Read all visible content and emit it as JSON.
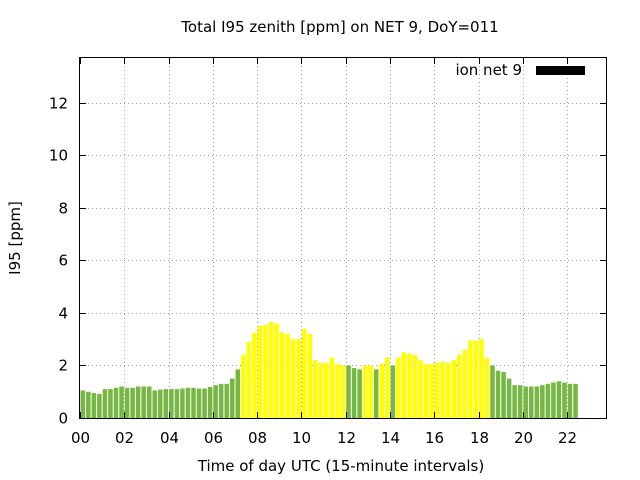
{
  "chart_data": {
    "type": "bar",
    "title": "Total I95 zenith [ppm] on NET 9, DoY=011",
    "xlabel": "Time of day UTC (15-minute intervals)",
    "ylabel": "I95 [ppm]",
    "legend": {
      "label": "ion net 9",
      "color": "#000000",
      "position": "top-right"
    },
    "xlim": [
      0,
      23.75
    ],
    "ylim": [
      0,
      13.7
    ],
    "x_ticks": [
      "00",
      "02",
      "04",
      "06",
      "08",
      "10",
      "12",
      "14",
      "16",
      "18",
      "20",
      "22"
    ],
    "y_ticks": [
      "0",
      "2",
      "4",
      "6",
      "8",
      "10",
      "12"
    ],
    "grid": true,
    "colors": {
      "normal": "#77b844",
      "elevated": "#ffff00"
    },
    "interval_hours": 0.25,
    "values": [
      1.05,
      1.0,
      0.95,
      0.92,
      1.1,
      1.1,
      1.15,
      1.2,
      1.15,
      1.15,
      1.2,
      1.2,
      1.2,
      1.05,
      1.08,
      1.1,
      1.1,
      1.1,
      1.12,
      1.15,
      1.15,
      1.12,
      1.12,
      1.18,
      1.25,
      1.3,
      1.3,
      1.5,
      1.85,
      2.4,
      2.9,
      3.25,
      3.5,
      3.55,
      3.65,
      3.6,
      3.25,
      3.2,
      3.0,
      3.0,
      3.4,
      3.2,
      2.2,
      2.1,
      2.1,
      2.3,
      2.05,
      2.0,
      2.0,
      1.9,
      1.85,
      2.0,
      2.0,
      1.85,
      2.05,
      2.3,
      2.0,
      2.3,
      2.5,
      2.45,
      2.4,
      2.2,
      2.05,
      2.05,
      2.1,
      2.15,
      2.1,
      2.2,
      2.4,
      2.6,
      2.95,
      2.95,
      3.0,
      2.3,
      2.0,
      1.8,
      1.75,
      1.5,
      1.25,
      1.25,
      1.2,
      1.2,
      1.2,
      1.25,
      1.3,
      1.35,
      1.4,
      1.35,
      1.3,
      1.3
    ],
    "level": [
      "normal",
      "normal",
      "normal",
      "normal",
      "normal",
      "normal",
      "normal",
      "normal",
      "normal",
      "normal",
      "normal",
      "normal",
      "normal",
      "normal",
      "normal",
      "normal",
      "normal",
      "normal",
      "normal",
      "normal",
      "normal",
      "normal",
      "normal",
      "normal",
      "normal",
      "normal",
      "normal",
      "normal",
      "normal",
      "elevated",
      "elevated",
      "elevated",
      "elevated",
      "elevated",
      "elevated",
      "elevated",
      "elevated",
      "elevated",
      "elevated",
      "elevated",
      "elevated",
      "elevated",
      "elevated",
      "elevated",
      "elevated",
      "elevated",
      "elevated",
      "elevated",
      "normal",
      "normal",
      "normal",
      "elevated",
      "elevated",
      "normal",
      "elevated",
      "elevated",
      "normal",
      "elevated",
      "elevated",
      "elevated",
      "elevated",
      "elevated",
      "elevated",
      "elevated",
      "elevated",
      "elevated",
      "elevated",
      "elevated",
      "elevated",
      "elevated",
      "elevated",
      "elevated",
      "elevated",
      "elevated",
      "normal",
      "normal",
      "normal",
      "normal",
      "normal",
      "normal",
      "normal",
      "normal",
      "normal",
      "normal",
      "normal",
      "normal",
      "normal",
      "normal",
      "normal",
      "normal"
    ]
  }
}
